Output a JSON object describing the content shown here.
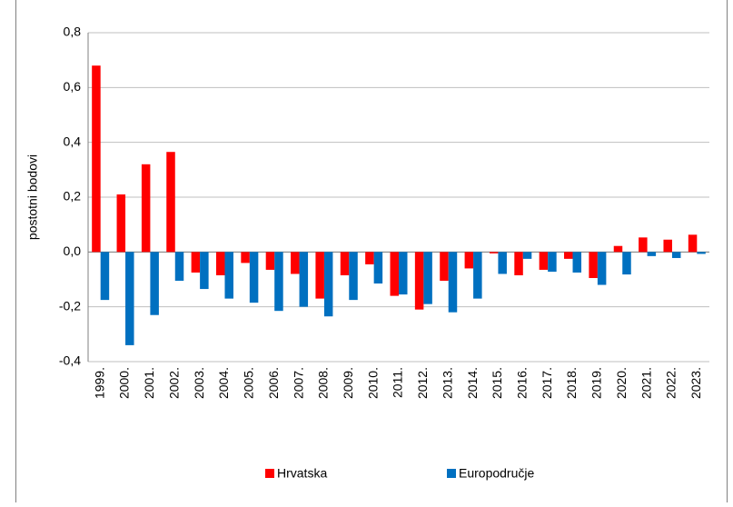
{
  "chart_data": {
    "type": "bar",
    "y_label": "postotni bodovi",
    "categories": [
      "1999.",
      "2000.",
      "2001.",
      "2002.",
      "2003.",
      "2004.",
      "2005.",
      "2006.",
      "2007.",
      "2008.",
      "2009.",
      "2010.",
      "2011.",
      "2012.",
      "2013.",
      "2014.",
      "2015.",
      "2016.",
      "2017.",
      "2018.",
      "2019.",
      "2020.",
      "2021.",
      "2022.",
      "2023."
    ],
    "series": [
      {
        "name": "Hrvatska",
        "color": "#ff0000",
        "values": [
          0.68,
          0.21,
          0.32,
          0.365,
          -0.075,
          -0.085,
          -0.04,
          -0.065,
          -0.08,
          -0.17,
          -0.085,
          -0.045,
          -0.16,
          -0.21,
          -0.105,
          -0.06,
          -0.005,
          -0.085,
          -0.065,
          -0.025,
          -0.095,
          0.022,
          0.053,
          0.045,
          0.063
        ]
      },
      {
        "name": "Europodručje",
        "color": "#0070c0",
        "values": [
          -0.175,
          -0.34,
          -0.23,
          -0.105,
          -0.135,
          -0.17,
          -0.185,
          -0.215,
          -0.2,
          -0.235,
          -0.175,
          -0.115,
          -0.155,
          -0.19,
          -0.22,
          -0.17,
          -0.08,
          -0.025,
          -0.072,
          -0.075,
          -0.12,
          -0.082,
          -0.015,
          -0.022,
          -0.007
        ]
      }
    ],
    "ylim": [
      -0.4,
      0.8
    ],
    "yticks": [
      {
        "value": -0.4,
        "label": "-0,4"
      },
      {
        "value": -0.2,
        "label": "-0,2"
      },
      {
        "value": 0,
        "label": "0,0"
      },
      {
        "value": 0.2,
        "label": "0,2"
      },
      {
        "value": 0.4,
        "label": "0,4"
      },
      {
        "value": 0.6,
        "label": "0,6"
      },
      {
        "value": 0.8,
        "label": "0,8"
      }
    ],
    "grid": true,
    "legend": "bottom"
  }
}
